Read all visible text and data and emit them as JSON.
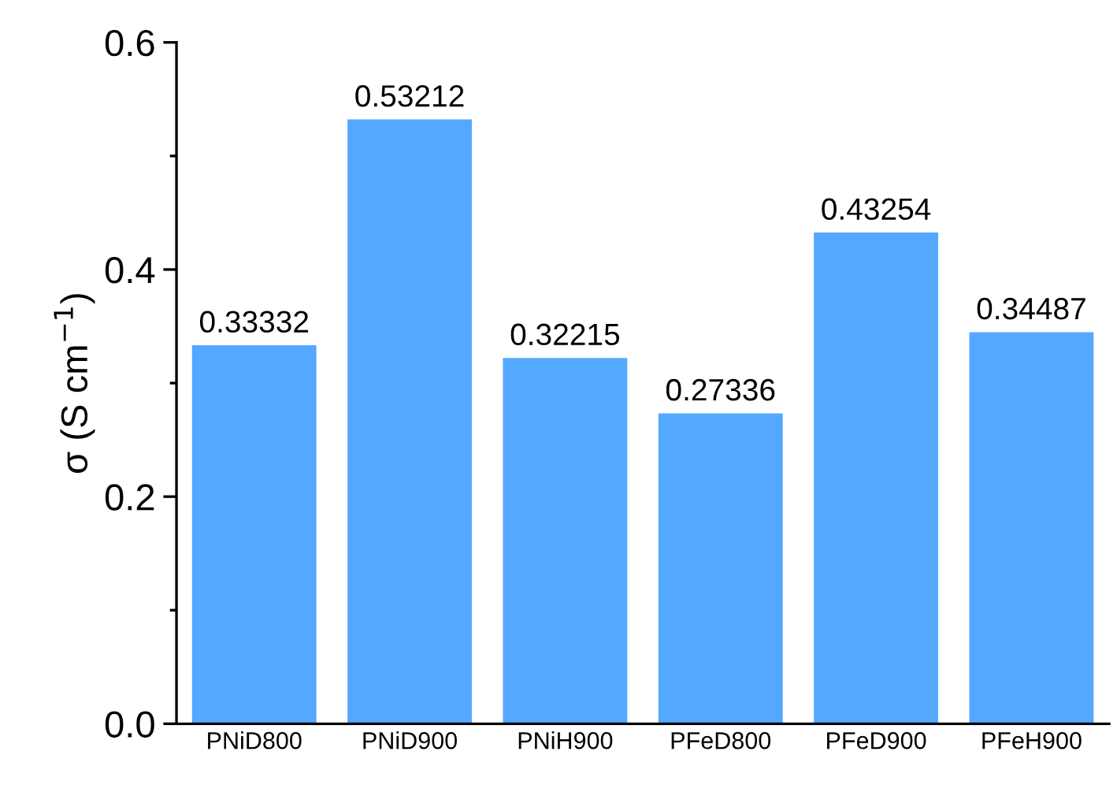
{
  "chart_data": {
    "type": "bar",
    "ylabel": "σ (S cm$^{−1}$)",
    "categories": [
      "PNiD800",
      "PNiD900",
      "PNiH900",
      "PFeD800",
      "PFeD900",
      "PFeH900"
    ],
    "values": [
      0.33332,
      0.53212,
      0.32215,
      0.27336,
      0.43254,
      0.34487
    ],
    "color": "#55a8ff",
    "data_labels": true,
    "ylim": [
      0,
      0.6
    ],
    "yticks": [
      {
        "value": 0,
        "label": "0.0"
      },
      {
        "value": 0.1,
        "label": null
      },
      0.2,
      {
        "value": 0.3,
        "label": null
      },
      0.4,
      {
        "value": 0.5,
        "label": null
      },
      0.6
    ],
    "grid": false,
    "legend": false
  }
}
